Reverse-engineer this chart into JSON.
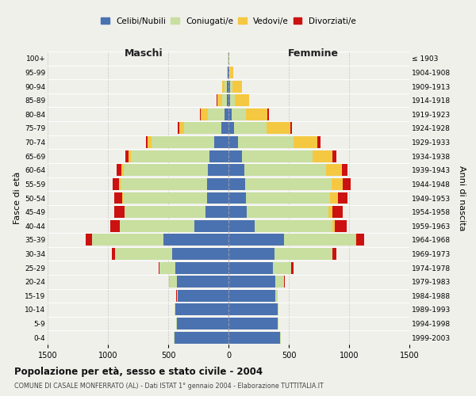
{
  "age_groups": [
    "0-4",
    "5-9",
    "10-14",
    "15-19",
    "20-24",
    "25-29",
    "30-34",
    "35-39",
    "40-44",
    "45-49",
    "50-54",
    "55-59",
    "60-64",
    "65-69",
    "70-74",
    "75-79",
    "80-84",
    "85-89",
    "90-94",
    "95-99",
    "100+"
  ],
  "birth_years": [
    "1999-2003",
    "1994-1998",
    "1989-1993",
    "1984-1988",
    "1979-1983",
    "1974-1978",
    "1969-1973",
    "1964-1968",
    "1959-1963",
    "1954-1958",
    "1949-1953",
    "1944-1948",
    "1939-1943",
    "1934-1938",
    "1929-1933",
    "1924-1928",
    "1919-1923",
    "1914-1918",
    "1909-1913",
    "1904-1908",
    "≤ 1903"
  ],
  "males": {
    "celibi": [
      450,
      430,
      440,
      420,
      430,
      440,
      470,
      540,
      280,
      190,
      175,
      175,
      170,
      160,
      120,
      60,
      30,
      15,
      10,
      5,
      2
    ],
    "coniugati": [
      2,
      3,
      5,
      10,
      60,
      130,
      470,
      590,
      620,
      670,
      700,
      720,
      700,
      650,
      520,
      310,
      140,
      40,
      20,
      5,
      2
    ],
    "vedovi": [
      0,
      0,
      0,
      0,
      1,
      1,
      1,
      2,
      3,
      5,
      8,
      10,
      15,
      20,
      30,
      40,
      60,
      40,
      20,
      4,
      1
    ],
    "divorziati": [
      0,
      0,
      0,
      1,
      3,
      10,
      25,
      50,
      75,
      80,
      65,
      55,
      40,
      25,
      15,
      8,
      5,
      3,
      2,
      1,
      0
    ]
  },
  "females": {
    "nubili": [
      430,
      410,
      410,
      390,
      390,
      370,
      380,
      460,
      220,
      150,
      145,
      135,
      130,
      115,
      80,
      45,
      25,
      15,
      10,
      5,
      2
    ],
    "coniugate": [
      2,
      3,
      5,
      15,
      70,
      150,
      480,
      590,
      640,
      680,
      700,
      720,
      680,
      580,
      460,
      270,
      120,
      35,
      20,
      5,
      2
    ],
    "vedove": [
      0,
      0,
      0,
      0,
      1,
      2,
      5,
      10,
      20,
      30,
      60,
      90,
      130,
      170,
      200,
      200,
      180,
      120,
      80,
      30,
      5
    ],
    "divorziate": [
      0,
      0,
      0,
      2,
      5,
      15,
      30,
      65,
      100,
      90,
      80,
      65,
      50,
      30,
      20,
      12,
      8,
      4,
      2,
      1,
      0
    ]
  },
  "colors": {
    "celibi_nubili": "#4b72b0",
    "coniugati": "#c8dfa0",
    "vedovi": "#f5c842",
    "divorziati": "#cc1111"
  },
  "xlim": 1500,
  "xticks": [
    -1500,
    -1000,
    -500,
    0,
    500,
    1000,
    1500
  ],
  "title": "Popolazione per età, sesso e stato civile - 2004",
  "subtitle": "COMUNE DI CASALE MONFERRATO (AL) - Dati ISTAT 1° gennaio 2004 - Elaborazione TUTTITALIA.IT",
  "ylabel_left": "Fasce di età",
  "ylabel_right": "Anni di nascita",
  "maschi_label": "Maschi",
  "femmine_label": "Femmine",
  "legend_labels": [
    "Celibi/Nubili",
    "Coniugati/e",
    "Vedovi/e",
    "Divorziati/e"
  ],
  "bg_color": "#f0f0eb",
  "bar_height": 0.85
}
